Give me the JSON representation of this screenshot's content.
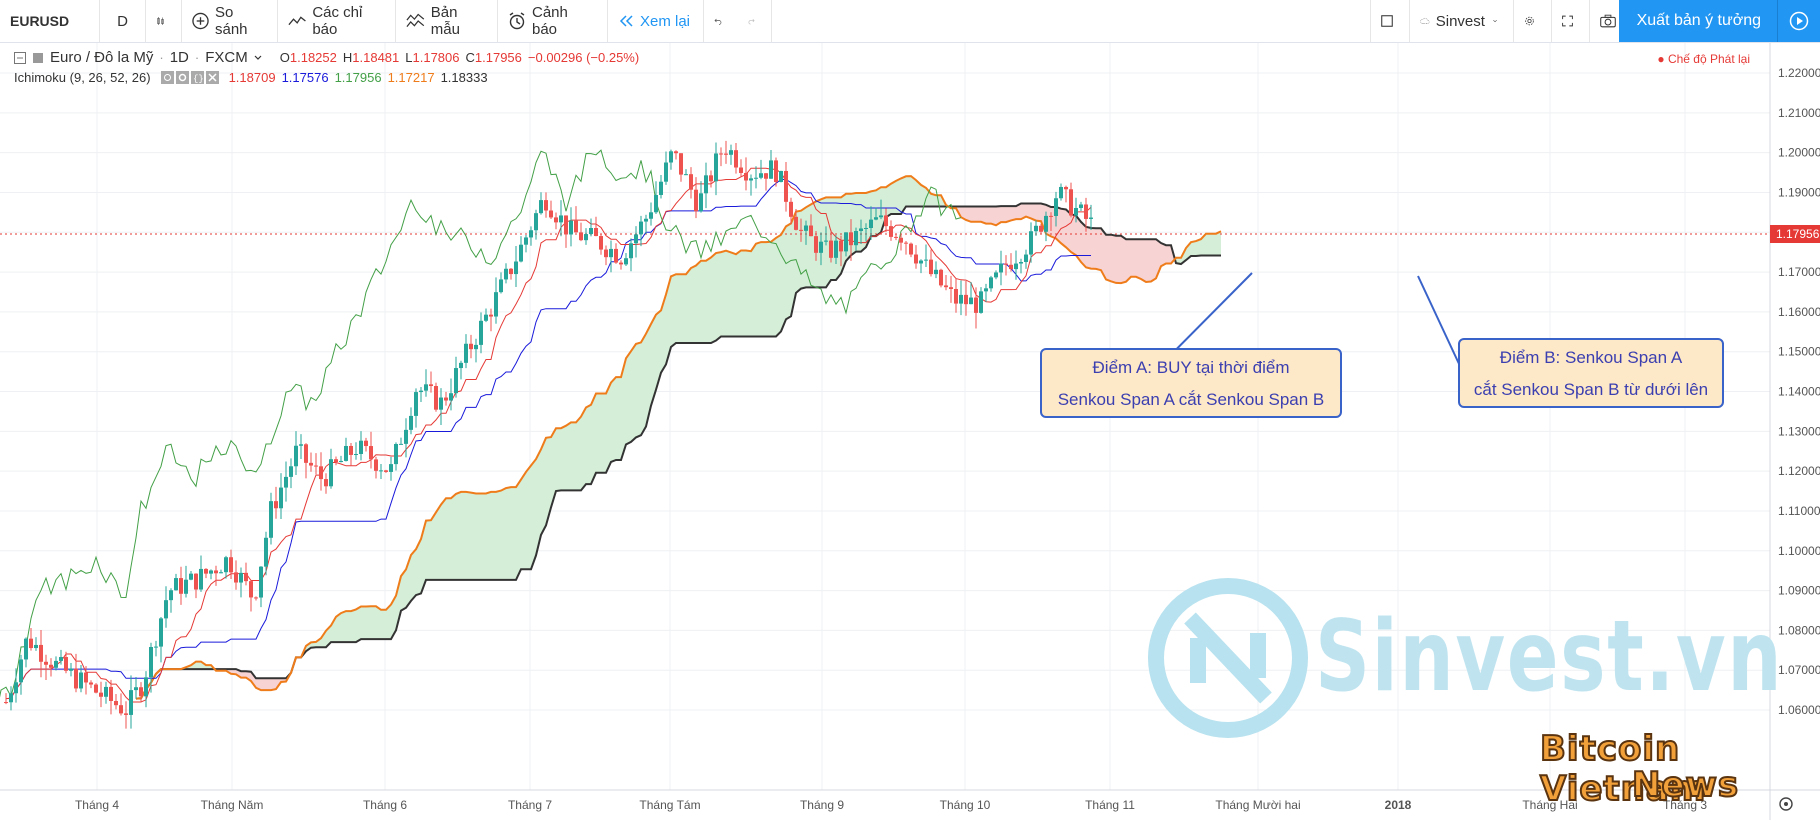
{
  "toolbar": {
    "symbol": "EURUSD",
    "interval": "D",
    "compare": "So sánh",
    "indicators": "Các chỉ báo",
    "templates": "Bản mẫu",
    "alerts": "Cảnh báo",
    "replay": "Xem lại",
    "layout_name": "Sinvest",
    "publish": "Xuất bản ý tưởng"
  },
  "legend": {
    "title": "Euro / Đô la Mỹ",
    "timeframe": "1D",
    "exchange": "FXCM",
    "open_label": "O",
    "open": "1.18252",
    "high_label": "H",
    "high": "1.18481",
    "low_label": "L",
    "low": "1.17806",
    "close_label": "C",
    "close": "1.17956",
    "change": "−0.00296 (−0.25%)",
    "indicator": "Ichimoku (9, 26, 52, 26)",
    "ich_v1": "1.18709",
    "ich_v2": "1.17576",
    "ich_v3": "1.17956",
    "ich_v4": "1.17217",
    "ich_v5": "1.18333",
    "replay_mode": "● Chế độ Phát lại"
  },
  "colors": {
    "up": "#26a69a",
    "down": "#ef5350",
    "tenkan": "#e53935",
    "kijun": "#1a1adb",
    "chikou": "#43a047",
    "spanA": "#ef7c1a",
    "spanB": "#333333",
    "cloud_bull": "#d4eed7",
    "cloud_bear": "#f8d3d3",
    "accent": "#2196f3"
  },
  "price_axis": [
    "1.22000",
    "1.21000",
    "1.20000",
    "1.19000",
    "1.18000",
    "1.17000",
    "1.16000",
    "1.15000",
    "1.14000",
    "1.13000",
    "1.12000",
    "1.11000",
    "1.10000",
    "1.09000",
    "1.08000",
    "1.07000",
    "1.06000"
  ],
  "current_price": "1.17956",
  "time_axis": [
    "Tháng 4",
    "Tháng Năm",
    "Tháng 6",
    "Tháng 7",
    "Tháng Tám",
    "Tháng 9",
    "Tháng 10",
    "Tháng 11",
    "Tháng Mười hai",
    "2018",
    "Tháng Hai",
    "Tháng 3"
  ],
  "callout_a": {
    "line1": "Điểm A: BUY tại thời điểm",
    "line2": "Senkou Span A cắt Senkou Span B"
  },
  "callout_b": {
    "line1": "Điểm B: Senkou Span A",
    "line2": "cắt Senkou Span B từ dưới lên"
  },
  "watermark": "Sinvest.vn",
  "brand": {
    "line1": "Bitcoin Vietnam",
    "line2": "News"
  },
  "chart_data": {
    "type": "candlestick",
    "symbol": "EURUSD",
    "ylim": [
      1.05,
      1.225
    ],
    "kijun": [
      [
        0,
        1.06
      ],
      [
        4,
        1.062
      ],
      [
        8,
        1.068
      ],
      [
        12,
        1.072
      ],
      [
        16,
        1.078
      ],
      [
        20,
        1.085
      ],
      [
        24,
        1.096
      ],
      [
        28,
        1.108
      ],
      [
        32,
        1.116
      ],
      [
        36,
        1.118
      ],
      [
        40,
        1.124
      ],
      [
        44,
        1.135
      ],
      [
        48,
        1.145
      ],
      [
        52,
        1.158
      ],
      [
        56,
        1.168
      ],
      [
        60,
        1.17
      ],
      [
        64,
        1.181
      ],
      [
        68,
        1.186
      ],
      [
        72,
        1.192
      ],
      [
        76,
        1.19
      ],
      [
        80,
        1.184
      ],
      [
        84,
        1.18
      ],
      [
        88,
        1.177
      ],
      [
        92,
        1.176
      ]
    ],
    "tenkan": [
      [
        0,
        1.063
      ],
      [
        4,
        1.072
      ],
      [
        8,
        1.07
      ],
      [
        12,
        1.083
      ],
      [
        16,
        1.091
      ],
      [
        20,
        1.101
      ],
      [
        24,
        1.112
      ],
      [
        28,
        1.122
      ],
      [
        32,
        1.126
      ],
      [
        36,
        1.127
      ],
      [
        40,
        1.133
      ],
      [
        44,
        1.143
      ],
      [
        48,
        1.158
      ],
      [
        52,
        1.172
      ],
      [
        56,
        1.176
      ],
      [
        60,
        1.178
      ],
      [
        64,
        1.186
      ],
      [
        68,
        1.196
      ],
      [
        72,
        1.189
      ],
      [
        76,
        1.184
      ],
      [
        80,
        1.176
      ],
      [
        84,
        1.165
      ],
      [
        88,
        1.174
      ],
      [
        92,
        1.182
      ],
      [
        94,
        1.185
      ]
    ],
    "close_approx": [
      [
        0,
        1.063
      ],
      [
        10,
        1.07
      ],
      [
        20,
        1.098
      ],
      [
        30,
        1.121
      ],
      [
        40,
        1.131
      ],
      [
        50,
        1.178
      ],
      [
        60,
        1.184
      ],
      [
        68,
        1.203
      ],
      [
        76,
        1.178
      ],
      [
        84,
        1.162
      ],
      [
        90,
        1.186
      ],
      [
        94,
        1.18
      ]
    ]
  }
}
